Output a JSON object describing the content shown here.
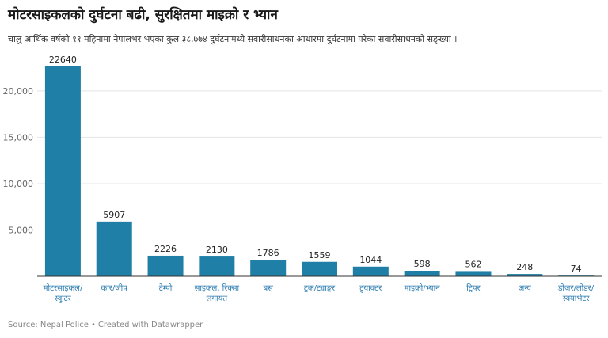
{
  "header": {
    "title": "मोटरसाइकलको दुर्घटना बढी, सुरक्षितमा माइक्रो र भ्यान",
    "subtitle": "चालु आर्थिक वर्षको ११ महिनामा नेपालभर भएका कुल ३८,७७४ दुर्घटनामध्ये सवारीसाधनका आधारमा दुर्घटनामा परेका सवारीसाधनको सङ्ख्या ।"
  },
  "chart_data": {
    "type": "bar",
    "categories": [
      [
        "मोटरसाइकल/",
        "स्कुटर"
      ],
      [
        "कार/जीप"
      ],
      [
        "टेम्पो"
      ],
      [
        "साइकल, रिक्सा",
        "लगायत"
      ],
      [
        "बस"
      ],
      [
        "ट्रक/ट्याङ्कर"
      ],
      [
        "ट्र्याक्टर"
      ],
      [
        "माइक्रो/भ्यान"
      ],
      [
        "ट्रिपर"
      ],
      [
        "अन्य"
      ],
      [
        "डोजर/लोडर/",
        "स्क्याभेटर"
      ]
    ],
    "values": [
      22640,
      5907,
      2226,
      2130,
      1786,
      1559,
      1044,
      598,
      562,
      248,
      74
    ],
    "value_labels": [
      "22640",
      "5907",
      "2226",
      "2130",
      "1786",
      "1559",
      "1044",
      "598",
      "562",
      "248",
      "74"
    ],
    "y_ticks": [
      5000,
      10000,
      15000,
      20000
    ],
    "y_tick_labels": [
      "5,000",
      "10,000",
      "15,000",
      "20,000"
    ],
    "ylim": [
      0,
      22640
    ],
    "grid": true,
    "bar_color": "#1f7fa6",
    "axis_label_color": "#2b7bb0"
  },
  "footer": {
    "source": "Source: Nepal Police",
    "separator": "•",
    "credit": "Created with Datawrapper"
  }
}
